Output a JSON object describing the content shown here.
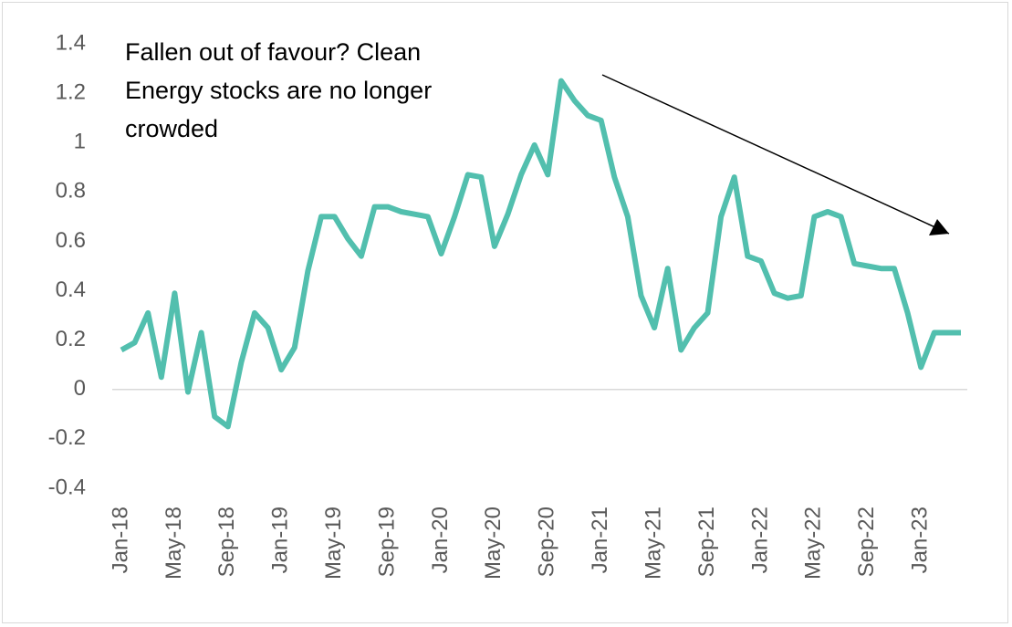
{
  "chart_data": {
    "type": "line",
    "annotation": "Fallen out of favour? Clean Energy stocks are no longer crowded",
    "categories": [
      "Jan-18",
      null,
      null,
      null,
      "May-18",
      null,
      null,
      null,
      "Sep-18",
      null,
      null,
      null,
      "Jan-19",
      null,
      null,
      null,
      "May-19",
      null,
      null,
      null,
      "Sep-19",
      null,
      null,
      null,
      "Jan-20",
      null,
      null,
      null,
      "May-20",
      null,
      null,
      null,
      "Sep-20",
      null,
      null,
      null,
      "Jan-21",
      null,
      null,
      null,
      "May-21",
      null,
      null,
      null,
      "Sep-21",
      null,
      null,
      null,
      "Jan-22",
      null,
      null,
      null,
      "May-22",
      null,
      null,
      null,
      "Sep-22",
      null,
      null,
      null,
      "Jan-23",
      null,
      null,
      null
    ],
    "series": [
      {
        "color": "#52bfae",
        "values": [
          0.16,
          0.19,
          0.31,
          0.05,
          0.39,
          -0.01,
          0.23,
          -0.11,
          -0.15,
          0.11,
          0.31,
          0.25,
          0.08,
          0.17,
          0.48,
          0.7,
          0.7,
          0.61,
          0.54,
          0.74,
          0.74,
          0.72,
          0.71,
          0.7,
          0.55,
          0.7,
          0.87,
          0.86,
          0.58,
          0.71,
          0.87,
          0.99,
          0.87,
          1.25,
          1.17,
          1.11,
          1.09,
          0.86,
          0.7,
          0.38,
          0.25,
          0.49,
          0.16,
          0.25,
          0.31,
          0.7,
          0.86,
          0.54,
          0.52,
          0.39,
          0.37,
          0.38,
          0.7,
          0.72,
          0.7,
          0.51,
          0.5,
          0.49,
          0.49,
          0.31,
          0.09,
          0.23,
          0.23,
          0.23
        ]
      }
    ],
    "ylim": [
      -0.4,
      1.4
    ],
    "yticks": [
      -0.4,
      -0.2,
      0,
      0.2,
      0.4,
      0.6,
      0.8,
      1,
      1.2,
      1.4
    ],
    "grid": false
  }
}
